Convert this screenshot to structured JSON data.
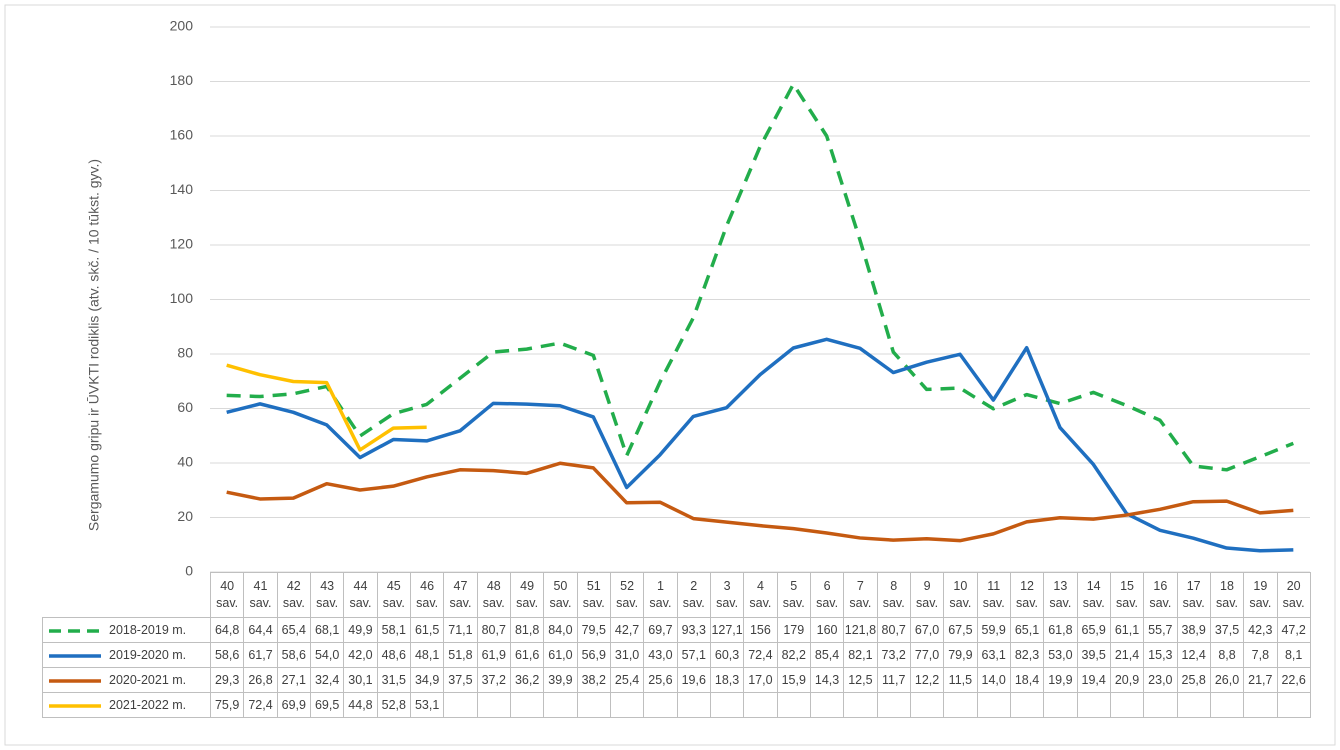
{
  "chart_data": {
    "type": "line",
    "y_label": "Sergamumo gripu ir ŪVKTI rodiklis (atv. skč. / 10 tūkst. gyv.)",
    "categories": [
      "40 sav.",
      "41 sav.",
      "42 sav.",
      "43 sav.",
      "44 sav.",
      "45 sav.",
      "46 sav.",
      "47 sav.",
      "48 sav.",
      "49 sav.",
      "50 sav.",
      "51 sav.",
      "52 sav.",
      "1 sav.",
      "2 sav.",
      "3 sav.",
      "4 sav.",
      "5 sav.",
      "6 sav.",
      "7 sav.",
      "8 sav.",
      "9 sav.",
      "10 sav.",
      "11 sav.",
      "12 sav.",
      "13 sav.",
      "14 sav.",
      "15 sav.",
      "16 sav.",
      "17 sav.",
      "18 sav.",
      "19 sav.",
      "20 sav."
    ],
    "series": [
      {
        "name": "2018-2019 m.",
        "color": "#22ad4b",
        "dashed": true,
        "values": [
          64.8,
          64.4,
          65.4,
          68.1,
          49.9,
          58.1,
          61.5,
          71.1,
          80.7,
          81.8,
          84.0,
          79.5,
          42.7,
          69.7,
          93.3,
          127.1,
          156,
          179,
          160,
          121.8,
          80.7,
          67.0,
          67.5,
          59.9,
          65.1,
          61.8,
          65.9,
          61.1,
          55.7,
          38.9,
          37.5,
          42.3,
          47.2
        ],
        "value_labels": [
          "64,8",
          "64,4",
          "65,4",
          "68,1",
          "49,9",
          "58,1",
          "61,5",
          "71,1",
          "80,7",
          "81,8",
          "84,0",
          "79,5",
          "42,7",
          "69,7",
          "93,3",
          "127,1",
          "156",
          "179",
          "160",
          "121,8",
          "80,7",
          "67,0",
          "67,5",
          "59,9",
          "65,1",
          "61,8",
          "65,9",
          "61,1",
          "55,7",
          "38,9",
          "37,5",
          "42,3",
          "47,2"
        ]
      },
      {
        "name": "2019-2020 m.",
        "color": "#1f6fc0",
        "dashed": false,
        "values": [
          58.6,
          61.7,
          58.6,
          54.0,
          42.0,
          48.6,
          48.1,
          51.8,
          61.9,
          61.6,
          61.0,
          56.9,
          31.0,
          43.0,
          57.1,
          60.3,
          72.4,
          82.2,
          85.4,
          82.1,
          73.2,
          77.0,
          79.9,
          63.1,
          82.3,
          53.0,
          39.5,
          21.4,
          15.3,
          12.4,
          8.8,
          7.8,
          8.1
        ],
        "value_labels": [
          "58,6",
          "61,7",
          "58,6",
          "54,0",
          "42,0",
          "48,6",
          "48,1",
          "51,8",
          "61,9",
          "61,6",
          "61,0",
          "56,9",
          "31,0",
          "43,0",
          "57,1",
          "60,3",
          "72,4",
          "82,2",
          "85,4",
          "82,1",
          "73,2",
          "77,0",
          "79,9",
          "63,1",
          "82,3",
          "53,0",
          "39,5",
          "21,4",
          "15,3",
          "12,4",
          "8,8",
          "7,8",
          "8,1"
        ]
      },
      {
        "name": "2020-2021 m.",
        "color": "#c55a11",
        "dashed": false,
        "values": [
          29.3,
          26.8,
          27.1,
          32.4,
          30.1,
          31.5,
          34.9,
          37.5,
          37.2,
          36.2,
          39.9,
          38.2,
          25.4,
          25.6,
          19.6,
          18.3,
          17.0,
          15.9,
          14.3,
          12.5,
          11.7,
          12.2,
          11.5,
          14.0,
          18.4,
          19.9,
          19.4,
          20.9,
          23.0,
          25.8,
          26.0,
          21.7,
          22.6
        ],
        "value_labels": [
          "29,3",
          "26,8",
          "27,1",
          "32,4",
          "30,1",
          "31,5",
          "34,9",
          "37,5",
          "37,2",
          "36,2",
          "39,9",
          "38,2",
          "25,4",
          "25,6",
          "19,6",
          "18,3",
          "17,0",
          "15,9",
          "14,3",
          "12,5",
          "11,7",
          "12,2",
          "11,5",
          "14,0",
          "18,4",
          "19,9",
          "19,4",
          "20,9",
          "23,0",
          "25,8",
          "26,0",
          "21,7",
          "22,6"
        ]
      },
      {
        "name": "2021-2022 m.",
        "color": "#ffc000",
        "dashed": false,
        "values": [
          75.9,
          72.4,
          69.9,
          69.5,
          44.8,
          52.8,
          53.1,
          null,
          null,
          null,
          null,
          null,
          null,
          null,
          null,
          null,
          null,
          null,
          null,
          null,
          null,
          null,
          null,
          null,
          null,
          null,
          null,
          null,
          null,
          null,
          null,
          null,
          null
        ],
        "value_labels": [
          "75,9",
          "72,4",
          "69,9",
          "69,5",
          "44,8",
          "52,8",
          "53,1",
          null,
          null,
          null,
          null,
          null,
          null,
          null,
          null,
          null,
          null,
          null,
          null,
          null,
          null,
          null,
          null,
          null,
          null,
          null,
          null,
          null,
          null,
          null,
          null,
          null,
          null
        ]
      }
    ],
    "ylim": [
      0,
      200
    ],
    "yticks": [
      0,
      20,
      40,
      60,
      80,
      100,
      120,
      140,
      160,
      180,
      200
    ],
    "grid": true
  }
}
